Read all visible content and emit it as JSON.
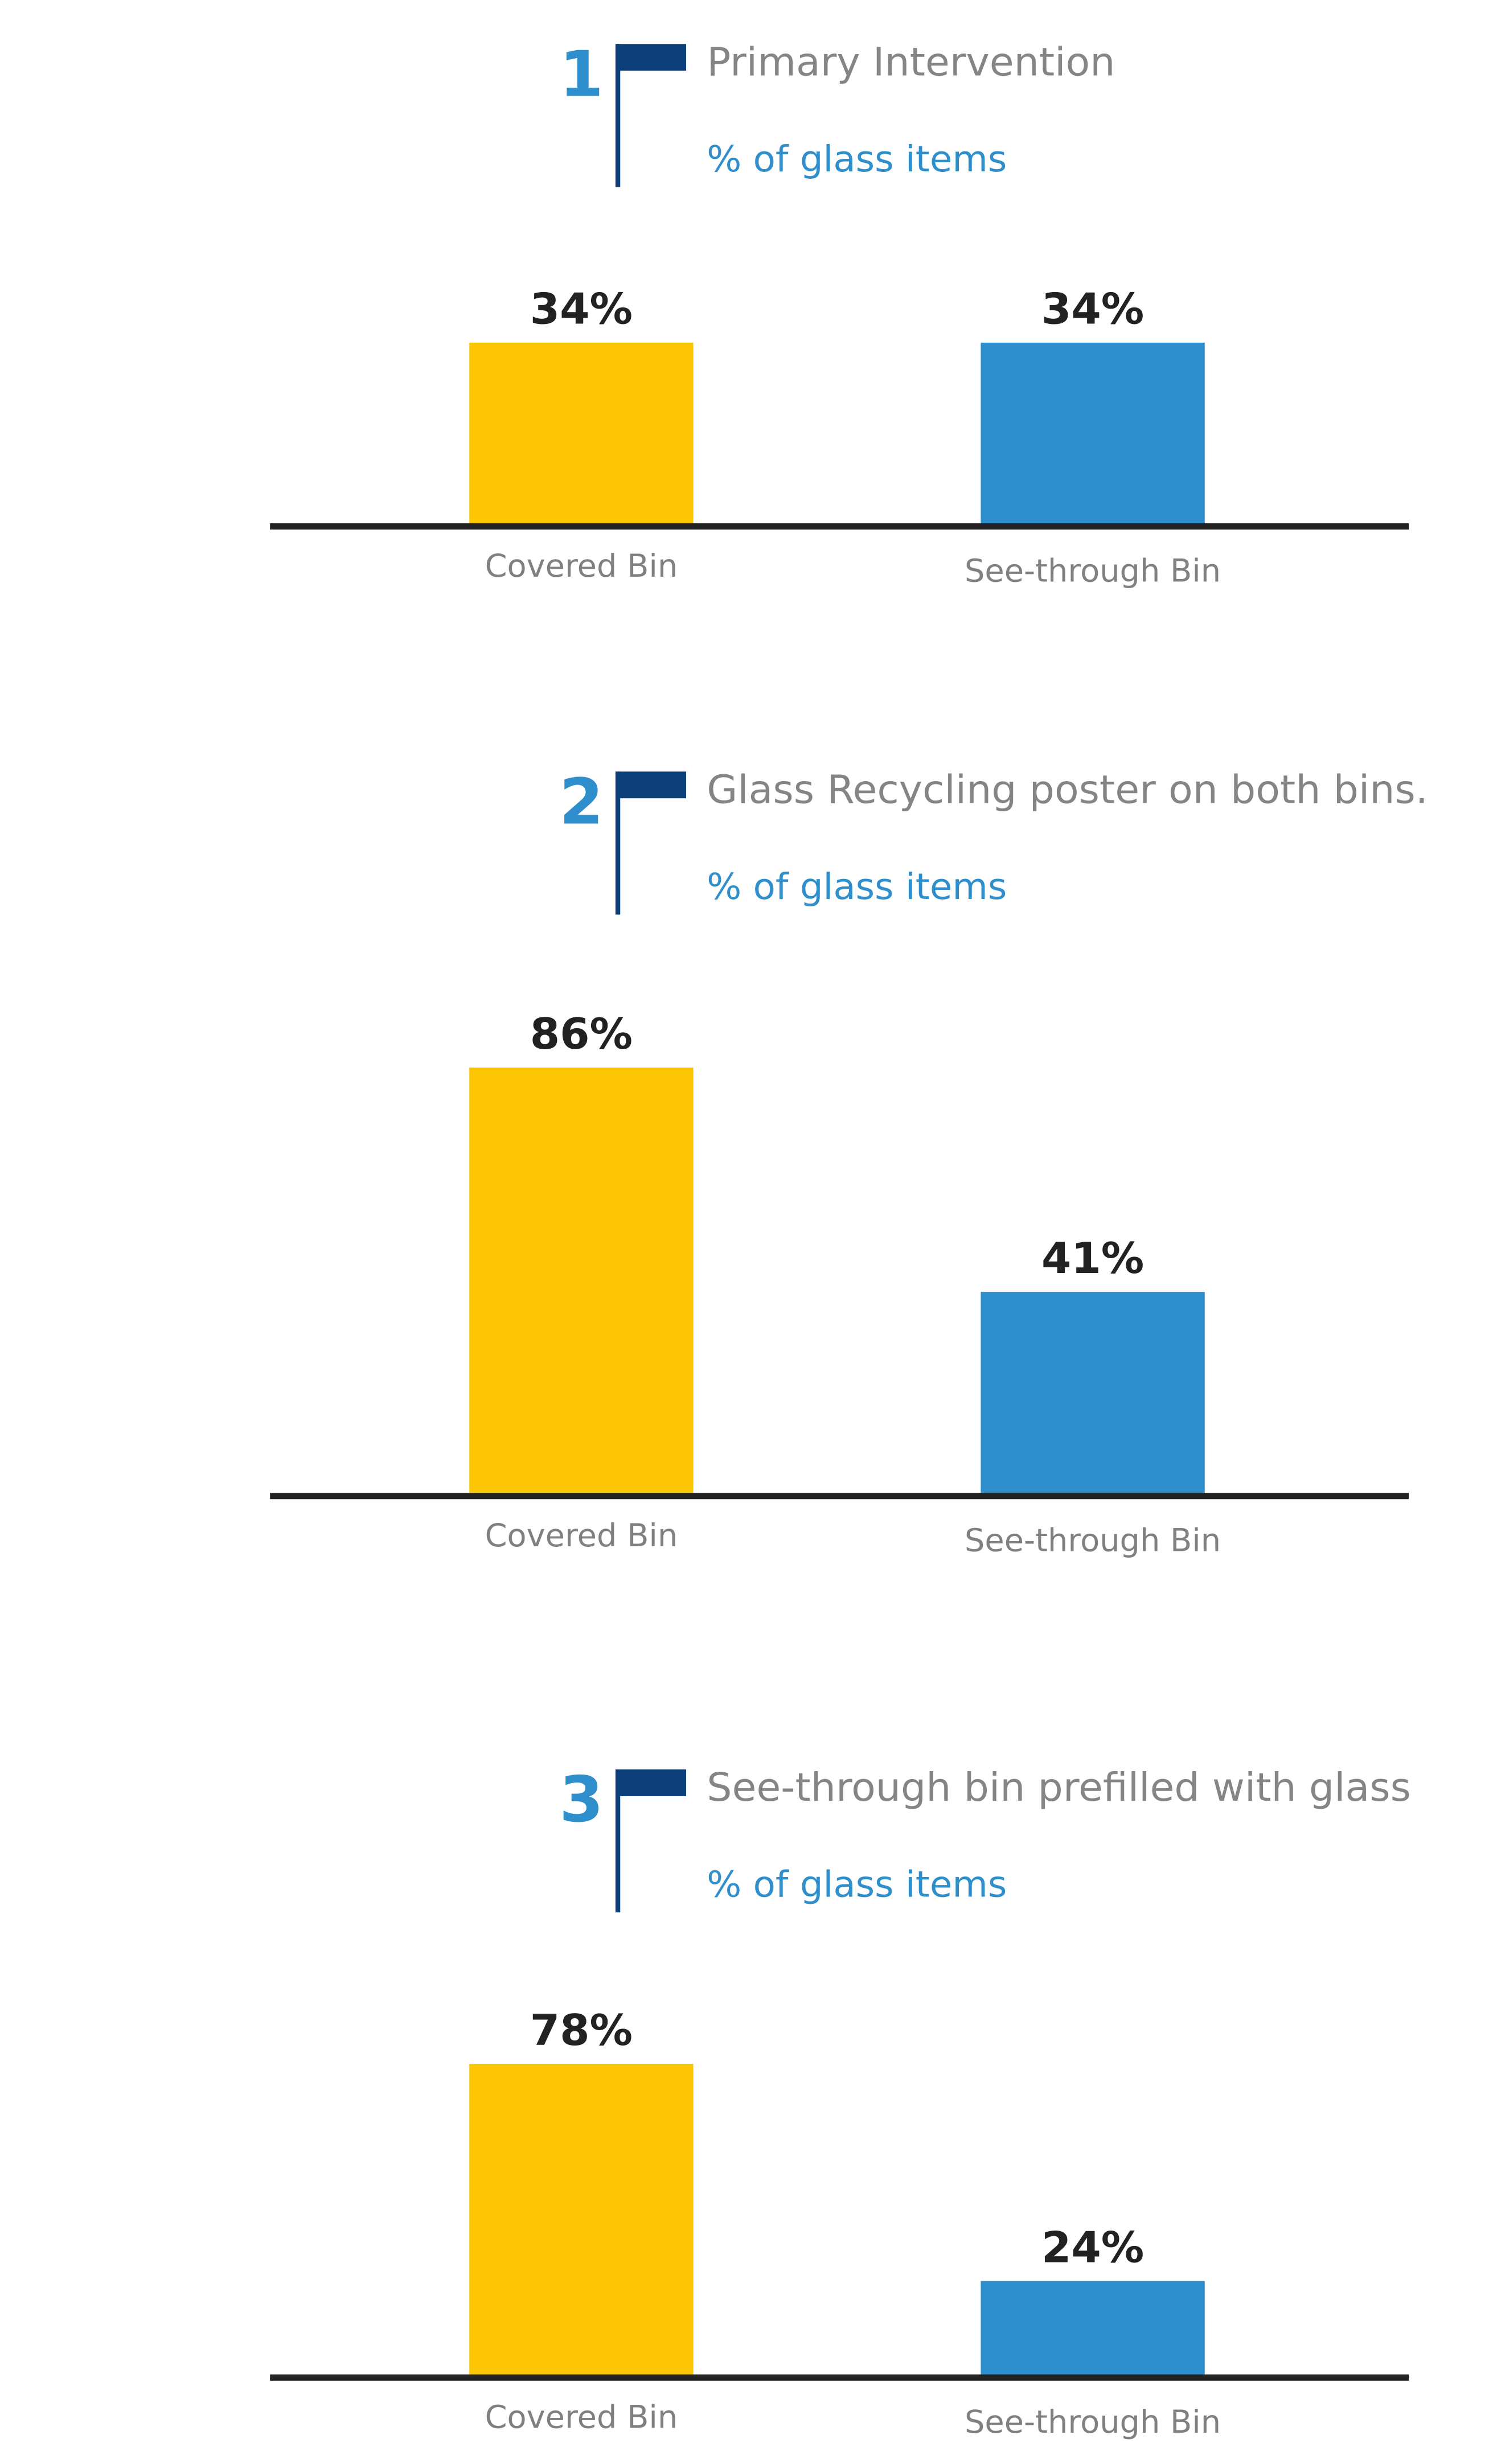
{
  "chart_data": [
    {
      "type": "bar",
      "number": "1",
      "title": "Primary Intervention",
      "subtitle": "% of glass items",
      "categories": [
        "Covered Bin",
        "See-through Bin"
      ],
      "values": [
        34,
        34
      ],
      "value_labels": [
        "34%",
        "34%"
      ],
      "colors": [
        "#fcc605",
        "#2e8fcc"
      ]
    },
    {
      "type": "bar",
      "number": "2",
      "title": "Glass Recycling poster on both bins.",
      "subtitle": "% of glass items",
      "categories": [
        "Covered Bin",
        "See-through Bin"
      ],
      "values": [
        86,
        41
      ],
      "value_labels": [
        "86%",
        "41%"
      ],
      "colors": [
        "#fcc605",
        "#2e8fcc"
      ]
    },
    {
      "type": "bar",
      "number": "3",
      "title": "See-through bin prefilled with glass",
      "subtitle": "% of glass items",
      "categories": [
        "Covered Bin",
        "See-through Bin"
      ],
      "values": [
        78,
        24
      ],
      "value_labels": [
        "78%",
        "24%"
      ],
      "colors": [
        "#fcc605",
        "#2e8fcc"
      ]
    }
  ]
}
